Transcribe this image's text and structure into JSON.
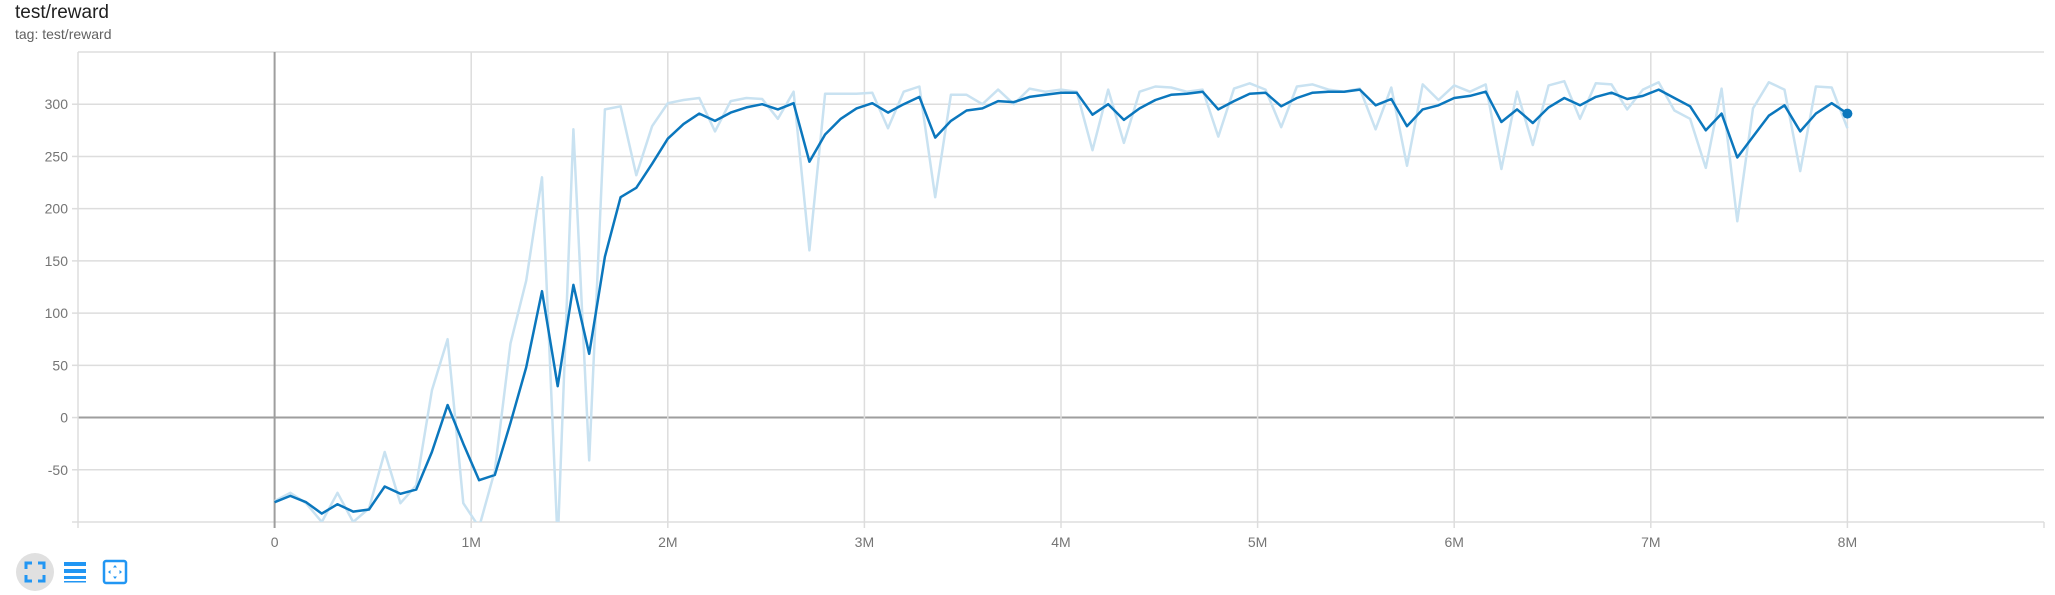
{
  "header": {
    "title": "test/reward",
    "subtitle": "tag: test/reward"
  },
  "toolbar": [
    {
      "icon": "fullscreen-icon",
      "active": true
    },
    {
      "icon": "toggle-log-list-icon",
      "active": false
    },
    {
      "icon": "fit-domain-icon",
      "active": false
    }
  ],
  "colors": {
    "smoothed": "#0b77bd",
    "raw": "#c9e2f1",
    "grid": "#dddddd",
    "zero_axis": "#9e9e9e",
    "icon": "#2196f3"
  },
  "chart_data": {
    "type": "line",
    "title": "test/reward",
    "xlabel": "",
    "ylabel": "",
    "xlim": [
      -1000000,
      9000000
    ],
    "ylim": [
      -100,
      350
    ],
    "grid": true,
    "x_ticks": [
      {
        "v": 0,
        "label": "0"
      },
      {
        "v": 1000000,
        "label": "1M"
      },
      {
        "v": 2000000,
        "label": "2M"
      },
      {
        "v": 3000000,
        "label": "3M"
      },
      {
        "v": 4000000,
        "label": "4M"
      },
      {
        "v": 5000000,
        "label": "5M"
      },
      {
        "v": 6000000,
        "label": "6M"
      },
      {
        "v": 7000000,
        "label": "7M"
      },
      {
        "v": 8000000,
        "label": "8M"
      }
    ],
    "y_ticks": [
      {
        "v": -50,
        "label": "-50"
      },
      {
        "v": 0,
        "label": "0"
      },
      {
        "v": 50,
        "label": "50"
      },
      {
        "v": 100,
        "label": "100"
      },
      {
        "v": 150,
        "label": "150"
      },
      {
        "v": 200,
        "label": "200"
      },
      {
        "v": 250,
        "label": "250"
      },
      {
        "v": 300,
        "label": "300"
      }
    ],
    "x": [
      0,
      80000,
      160000,
      240000,
      320000,
      400000,
      480000,
      560000,
      640000,
      720000,
      800000,
      880000,
      960000,
      1040000,
      1120000,
      1200000,
      1280000,
      1360000,
      1440000,
      1520000,
      1600000,
      1680000,
      1760000,
      1840000,
      1920000,
      2000000,
      2080000,
      2160000,
      2240000,
      2320000,
      2400000,
      2480000,
      2560000,
      2640000,
      2720000,
      2800000,
      2880000,
      2960000,
      3040000,
      3120000,
      3200000,
      3280000,
      3360000,
      3440000,
      3520000,
      3600000,
      3680000,
      3760000,
      3840000,
      3920000,
      4000000,
      4080000,
      4160000,
      4240000,
      4320000,
      4400000,
      4480000,
      4560000,
      4640000,
      4720000,
      4800000,
      4880000,
      4960000,
      5040000,
      5120000,
      5200000,
      5280000,
      5360000,
      5440000,
      5520000,
      5600000,
      5680000,
      5760000,
      5840000,
      5920000,
      6000000,
      6080000,
      6160000,
      6240000,
      6320000,
      6400000,
      6480000,
      6560000,
      6640000,
      6720000,
      6800000,
      6880000,
      6960000,
      7040000,
      7120000,
      7200000,
      7280000,
      7360000,
      7440000,
      7520000,
      7600000,
      7680000,
      7760000,
      7840000,
      7920000,
      8000000
    ],
    "series": [
      {
        "kind": "raw",
        "values": [
          -80,
          -72,
          -82,
          -100,
          -72,
          -100,
          -87,
          -33,
          -82,
          -65,
          26,
          75,
          -82,
          -105,
          -51,
          71,
          131,
          230,
          -120,
          276,
          -41,
          295,
          298,
          232,
          279,
          301,
          304,
          306,
          274,
          303,
          306,
          305,
          286,
          312,
          160,
          310,
          310,
          310,
          311,
          277,
          312,
          317,
          211,
          309,
          309,
          300,
          314,
          300,
          315,
          312,
          314,
          312,
          256,
          314,
          263,
          312,
          317,
          316,
          312,
          314,
          269,
          315,
          320,
          314,
          278,
          317,
          319,
          314,
          312,
          315,
          276,
          316,
          241,
          319,
          304,
          318,
          312,
          319,
          238,
          312,
          261,
          318,
          322,
          286,
          320,
          319,
          295,
          314,
          321,
          294,
          286,
          239,
          315,
          188,
          296,
          321,
          314,
          236,
          317,
          316,
          277
        ]
      },
      {
        "kind": "smoothed",
        "values": [
          -81,
          -75,
          -81,
          -92,
          -83,
          -90,
          -88,
          -66,
          -73,
          -69,
          -33,
          12,
          -25,
          -60,
          -55,
          -5,
          48,
          121,
          30,
          127,
          61,
          154,
          211,
          220,
          243,
          267,
          281,
          291,
          284,
          292,
          297,
          300,
          295,
          301,
          245,
          271,
          286,
          296,
          301,
          292,
          300,
          307,
          268,
          284,
          294,
          296,
          303,
          302,
          307,
          309,
          311,
          311,
          290,
          300,
          285,
          296,
          304,
          309,
          310,
          312,
          295,
          303,
          310,
          311,
          298,
          306,
          311,
          312,
          312,
          314,
          299,
          305,
          279,
          295,
          299,
          306,
          308,
          312,
          283,
          295,
          282,
          297,
          306,
          299,
          307,
          311,
          305,
          308,
          314,
          306,
          298,
          275,
          291,
          249,
          269,
          289,
          299,
          274,
          291,
          301,
          291
        ]
      }
    ]
  }
}
